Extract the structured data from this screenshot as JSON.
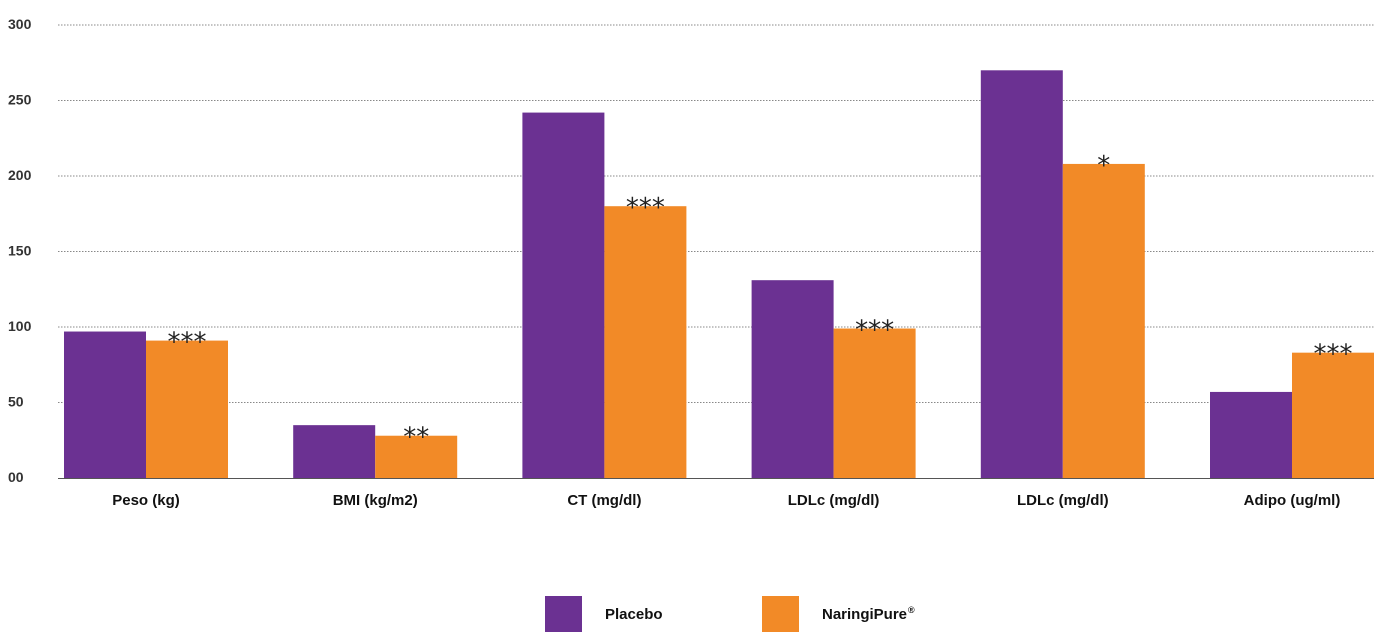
{
  "chart_data": {
    "type": "bar",
    "categories": [
      "Peso (kg)",
      "BMI (kg/m2)",
      "CT (mg/dl)",
      "LDLc (mg/dl)",
      "LDLc (mg/dl)",
      "Adipo (ug/ml)"
    ],
    "series": [
      {
        "name": "Placebo",
        "values": [
          97,
          35,
          242,
          131,
          270,
          57
        ],
        "color": "#6b3192"
      },
      {
        "name": "NaringiPure",
        "values": [
          91,
          28,
          180,
          99,
          208,
          83
        ],
        "color": "#f28a27"
      }
    ],
    "significance": [
      "***",
      "**",
      "***",
      "***",
      "*",
      "***"
    ],
    "yticks": [
      "00",
      "50",
      "100",
      "150",
      "200",
      "250",
      "300"
    ],
    "ylim": [
      0,
      300
    ],
    "grid": true,
    "legend_position": "bottom-center"
  },
  "legend": {
    "placebo_label": "Placebo",
    "naringipure_label": "NaringiPure",
    "naringipure_mark": "®"
  }
}
